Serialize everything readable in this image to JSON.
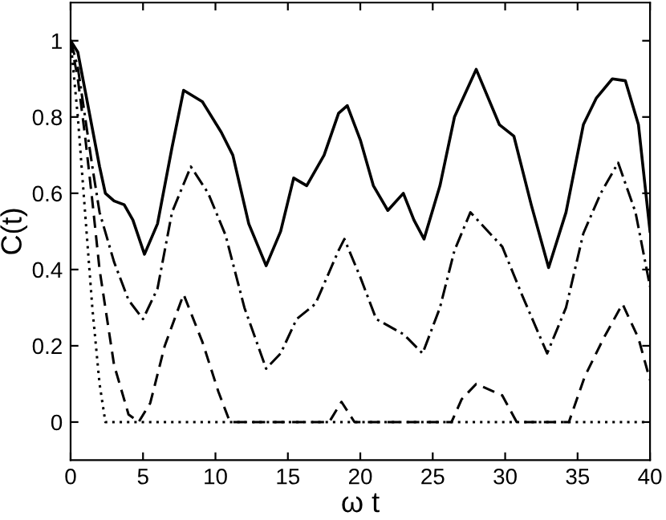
{
  "chart_data": {
    "type": "line",
    "xlabel": "ω t",
    "ylabel": "C(t)",
    "xlim": [
      0,
      40
    ],
    "ylim": [
      -0.1,
      1.1
    ],
    "xticks": [
      0,
      5,
      10,
      15,
      20,
      25,
      30,
      35,
      40
    ],
    "yticks": [
      0,
      0.2,
      0.4,
      0.6,
      0.8,
      1
    ],
    "grid": false,
    "legend": false,
    "marker": "none",
    "series": [
      {
        "color": "#000000",
        "line_style": "solid",
        "x": [
          0,
          0.5,
          1,
          1.5,
          2,
          2.4,
          3,
          3.7,
          4.3,
          5.1,
          6,
          7,
          7.8,
          9.1,
          10.4,
          11.2,
          12.3,
          13.5,
          14.5,
          15.4,
          16.3,
          17.5,
          18.5,
          19.1,
          20,
          20.9,
          21.9,
          22.97,
          23.7,
          24.4,
          25.5,
          26.5,
          28,
          29.6,
          30.6,
          31.8,
          33,
          34.2,
          35.4,
          36.3,
          37.4,
          38.3,
          39.2,
          40
        ],
        "values": [
          1,
          0.97,
          0.87,
          0.77,
          0.67,
          0.6,
          0.58,
          0.57,
          0.53,
          0.44,
          0.52,
          0.72,
          0.87,
          0.84,
          0.76,
          0.7,
          0.52,
          0.41,
          0.5,
          0.64,
          0.62,
          0.7,
          0.81,
          0.83,
          0.74,
          0.62,
          0.555,
          0.6,
          0.53,
          0.48,
          0.62,
          0.8,
          0.925,
          0.78,
          0.75,
          0.57,
          0.405,
          0.55,
          0.78,
          0.85,
          0.9,
          0.895,
          0.78,
          0.5
        ]
      },
      {
        "color": "#000000",
        "line_style": "dashdot",
        "x": [
          0,
          0.5,
          1,
          1.5,
          2,
          3,
          4,
          5,
          6,
          7,
          8.3,
          9.5,
          10.7,
          12,
          13.5,
          14.5,
          15.6,
          16.9,
          18.5,
          18.9,
          20,
          21.1,
          23,
          24.3,
          25.5,
          26.5,
          27.6,
          29.8,
          31.2,
          32.9,
          34.2,
          35.4,
          36.6,
          37.8,
          39,
          40
        ],
        "values": [
          1,
          0.93,
          0.8,
          0.67,
          0.55,
          0.42,
          0.32,
          0.27,
          0.35,
          0.55,
          0.67,
          0.6,
          0.49,
          0.3,
          0.14,
          0.18,
          0.27,
          0.31,
          0.45,
          0.48,
          0.38,
          0.27,
          0.23,
          0.18,
          0.3,
          0.45,
          0.55,
          0.46,
          0.33,
          0.18,
          0.3,
          0.495,
          0.6,
          0.68,
          0.55,
          0.355
        ]
      },
      {
        "color": "#000000",
        "line_style": "dashed",
        "x": [
          0,
          0.5,
          1,
          1.5,
          2,
          3,
          4,
          4.7,
          5.5,
          6.5,
          7.8,
          9.1,
          10.2,
          11,
          17.85,
          18.7,
          19.6,
          26.3,
          27,
          28,
          29.8,
          30.8,
          34.4,
          35.5,
          36.8,
          38.1,
          39.2,
          40
        ],
        "values": [
          1,
          0.9,
          0.75,
          0.58,
          0.4,
          0.15,
          0.02,
          0,
          0.05,
          0.2,
          0.335,
          0.21,
          0.08,
          0,
          0,
          0.053,
          0,
          0,
          0.06,
          0.1,
          0.07,
          0,
          0,
          0.12,
          0.22,
          0.31,
          0.22,
          0.11
        ]
      },
      {
        "color": "#000000",
        "line_style": "dotted",
        "x": [
          0,
          0.5,
          1,
          1.5,
          2,
          2.4,
          40
        ],
        "values": [
          1,
          0.8,
          0.55,
          0.3,
          0.1,
          0,
          0
        ]
      }
    ]
  }
}
